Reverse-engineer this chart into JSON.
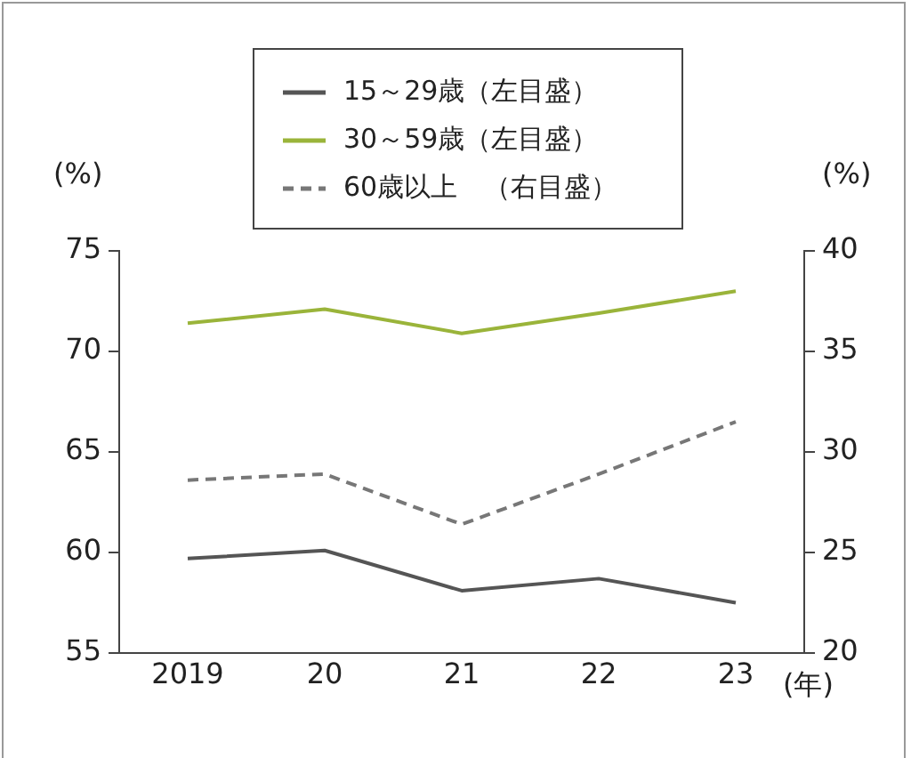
{
  "chart_data": {
    "type": "line",
    "categories": [
      "2019",
      "20",
      "21",
      "22",
      "23"
    ],
    "xlabel": "(年)",
    "ylabel": "(%)",
    "y2label": "(%)",
    "ylim": [
      55,
      75
    ],
    "yticks": [
      55,
      60,
      65,
      70,
      75
    ],
    "y2lim": [
      20,
      40
    ],
    "y2ticks": [
      20,
      25,
      30,
      35,
      40
    ],
    "grid": false,
    "legend": "top",
    "marker": "none",
    "series": [
      {
        "name": "15～29歳（左目盛）",
        "color": "#555555",
        "values": [
          59.7,
          60.1,
          58.1,
          58.7,
          57.5
        ],
        "line_style": "solid"
      },
      {
        "name": "30～59歳（左目盛）",
        "color": "#9ab43a",
        "values": [
          71.4,
          72.1,
          70.9,
          71.9,
          73.0
        ],
        "line_style": "solid"
      },
      {
        "name": "60歳以上　（右目盛）",
        "color": "#777777",
        "values": [
          28.6,
          28.9,
          26.4,
          28.9,
          31.5
        ],
        "axis": "y2",
        "line_style": "dashed"
      }
    ]
  }
}
